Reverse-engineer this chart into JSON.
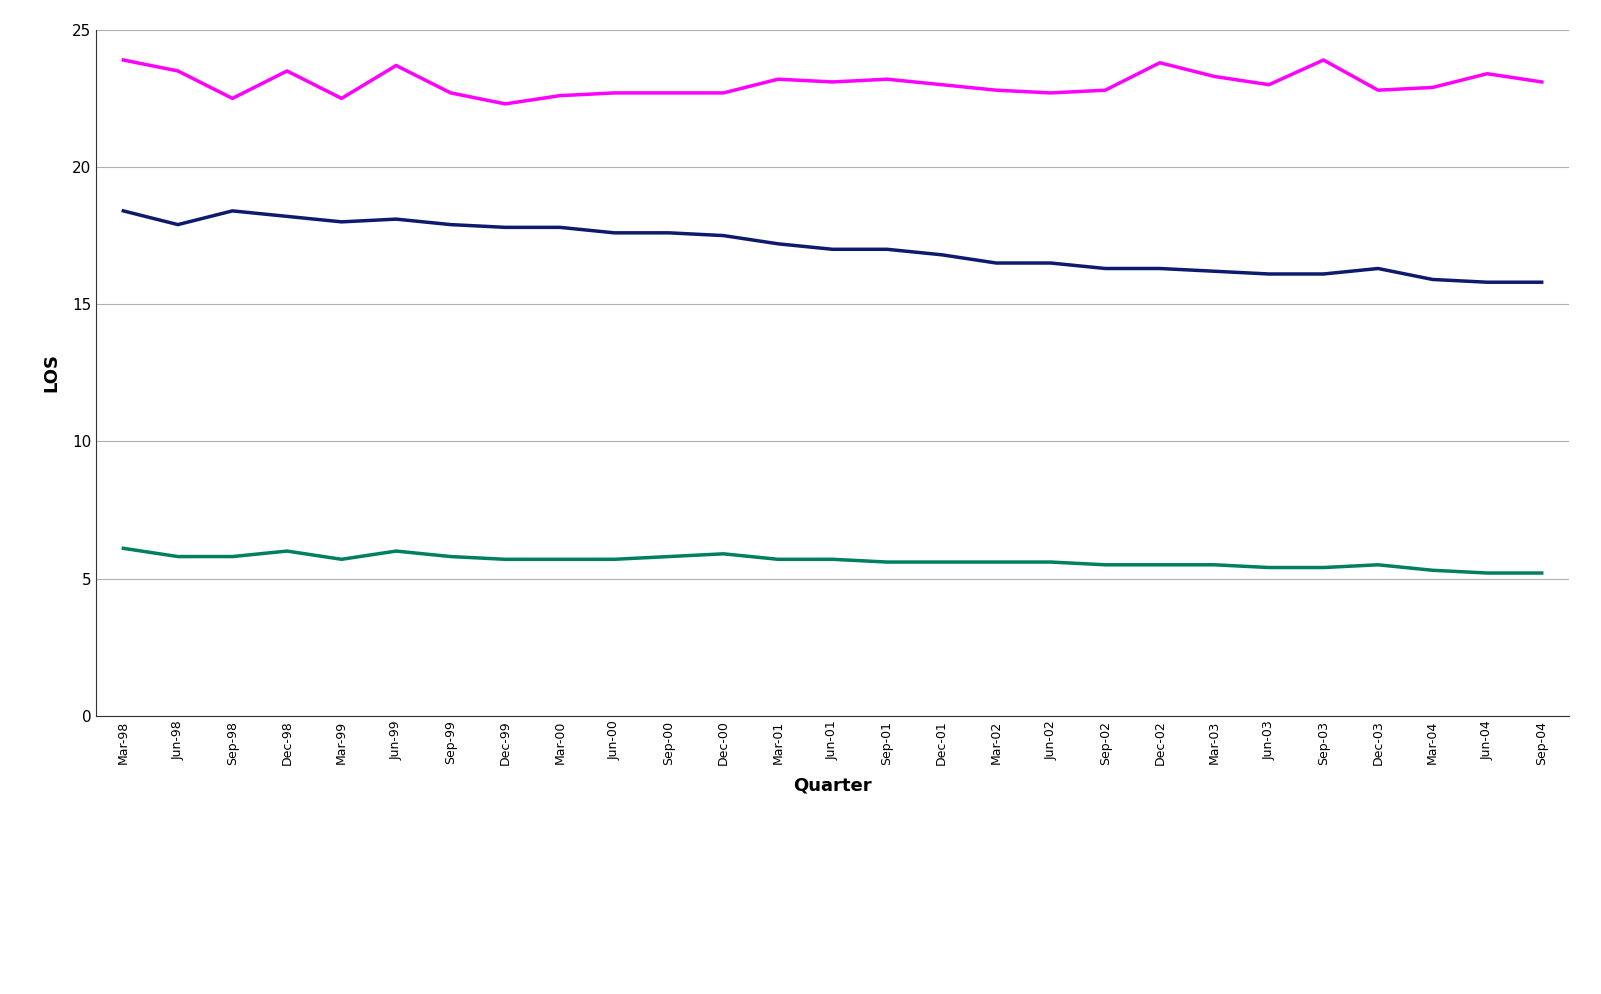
{
  "quarters": [
    "Mar-98",
    "Jun-98",
    "Sep-98",
    "Dec-98",
    "Mar-99",
    "Jun-99",
    "Sep-99",
    "Dec-99",
    "Mar-00",
    "Jun-00",
    "Sep-00",
    "Dec-00",
    "Mar-01",
    "Jun-01",
    "Sep-01",
    "Dec-01",
    "Mar-02",
    "Jun-02",
    "Sep-02",
    "Dec-02",
    "Mar-03",
    "Jun-03",
    "Sep-03",
    "Dec-03",
    "Mar-04",
    "Jun-04",
    "Sep-04"
  ],
  "irf_los": [
    18.4,
    17.9,
    18.4,
    18.2,
    18.0,
    18.1,
    17.9,
    17.8,
    17.8,
    17.6,
    17.6,
    17.5,
    17.2,
    17.0,
    17.0,
    16.8,
    16.5,
    16.5,
    16.3,
    16.3,
    16.2,
    16.1,
    16.1,
    16.3,
    15.9,
    15.8,
    15.8
  ],
  "snf_los": [
    23.9,
    23.5,
    22.5,
    23.5,
    22.5,
    23.7,
    22.7,
    22.3,
    22.6,
    22.7,
    22.7,
    22.7,
    23.2,
    23.1,
    23.2,
    23.0,
    22.8,
    22.7,
    22.8,
    23.8,
    23.3,
    23.0,
    23.9,
    22.8,
    22.9,
    23.4,
    23.1
  ],
  "acute_los": [
    6.1,
    5.8,
    5.8,
    6.0,
    5.7,
    6.0,
    5.8,
    5.7,
    5.7,
    5.7,
    5.8,
    5.9,
    5.7,
    5.7,
    5.6,
    5.6,
    5.6,
    5.6,
    5.5,
    5.5,
    5.5,
    5.4,
    5.4,
    5.5,
    5.3,
    5.2,
    5.2
  ],
  "irf_color": "#0d1a6e",
  "snf_color": "#ff00ff",
  "acute_color": "#008060",
  "ylim": [
    0,
    25
  ],
  "yticks": [
    0,
    5,
    10,
    15,
    20,
    25
  ],
  "ylabel": "LOS",
  "xlabel": "Quarter",
  "line_width": 2.5,
  "background_color": "#ffffff",
  "grid_color": "#b0b0b0"
}
